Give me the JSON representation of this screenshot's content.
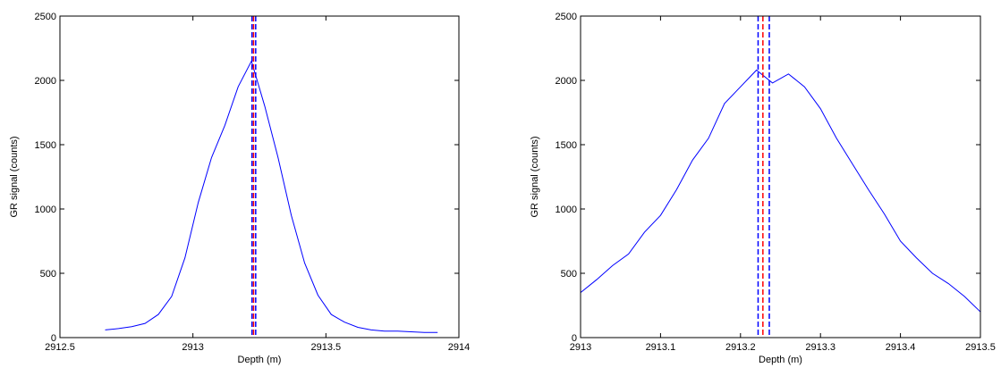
{
  "chart_data": [
    {
      "type": "line",
      "xlabel": "Depth (m)",
      "ylabel": "GR signal (counts)",
      "color": "#0000ff",
      "x": [
        2912.67,
        2912.72,
        2912.77,
        2912.82,
        2912.87,
        2912.92,
        2912.97,
        2913.02,
        2913.07,
        2913.12,
        2913.17,
        2913.22,
        2913.27,
        2913.32,
        2913.37,
        2913.42,
        2913.47,
        2913.52,
        2913.57,
        2913.62,
        2913.67,
        2913.72,
        2913.77,
        2913.82,
        2913.87,
        2913.92
      ],
      "values": [
        60,
        70,
        85,
        110,
        180,
        320,
        620,
        1050,
        1400,
        1650,
        1950,
        2150,
        1800,
        1400,
        950,
        580,
        330,
        180,
        120,
        80,
        60,
        50,
        50,
        45,
        40,
        40
      ],
      "vlines": [
        {
          "x": 2913.222,
          "color": "#0000ff"
        },
        {
          "x": 2913.228,
          "color": "#ff0000"
        },
        {
          "x": 2913.236,
          "color": "#0000ff"
        }
      ],
      "xlim": [
        2912.5,
        2914
      ],
      "xticks": [
        2912.5,
        2913,
        2913.5,
        2914
      ],
      "ylim": [
        0,
        2500
      ],
      "yticks": [
        0,
        500,
        1000,
        1500,
        2000,
        2500
      ]
    },
    {
      "type": "line",
      "xlabel": "Depth (m)",
      "ylabel": "GR signal (counts)",
      "color": "#0000ff",
      "x": [
        2913.0,
        2913.02,
        2913.04,
        2913.06,
        2913.08,
        2913.1,
        2913.12,
        2913.14,
        2913.16,
        2913.18,
        2913.2,
        2913.22,
        2913.24,
        2913.26,
        2913.28,
        2913.3,
        2913.32,
        2913.34,
        2913.36,
        2913.38,
        2913.4,
        2913.42,
        2913.44,
        2913.46,
        2913.48,
        2913.5
      ],
      "values": [
        350,
        450,
        560,
        650,
        820,
        950,
        1150,
        1380,
        1550,
        1820,
        1950,
        2080,
        1980,
        2050,
        1950,
        1780,
        1550,
        1350,
        1150,
        960,
        750,
        620,
        500,
        420,
        320,
        200
      ],
      "vlines": [
        {
          "x": 2913.222,
          "color": "#0000ff"
        },
        {
          "x": 2913.228,
          "color": "#ff0000"
        },
        {
          "x": 2913.236,
          "color": "#0000ff"
        }
      ],
      "xlim": [
        2913,
        2913.5
      ],
      "xticks": [
        2913,
        2913.1,
        2913.2,
        2913.3,
        2913.4,
        2913.5
      ],
      "ylim": [
        0,
        2500
      ],
      "yticks": [
        0,
        500,
        1000,
        1500,
        2000,
        2500
      ]
    }
  ]
}
